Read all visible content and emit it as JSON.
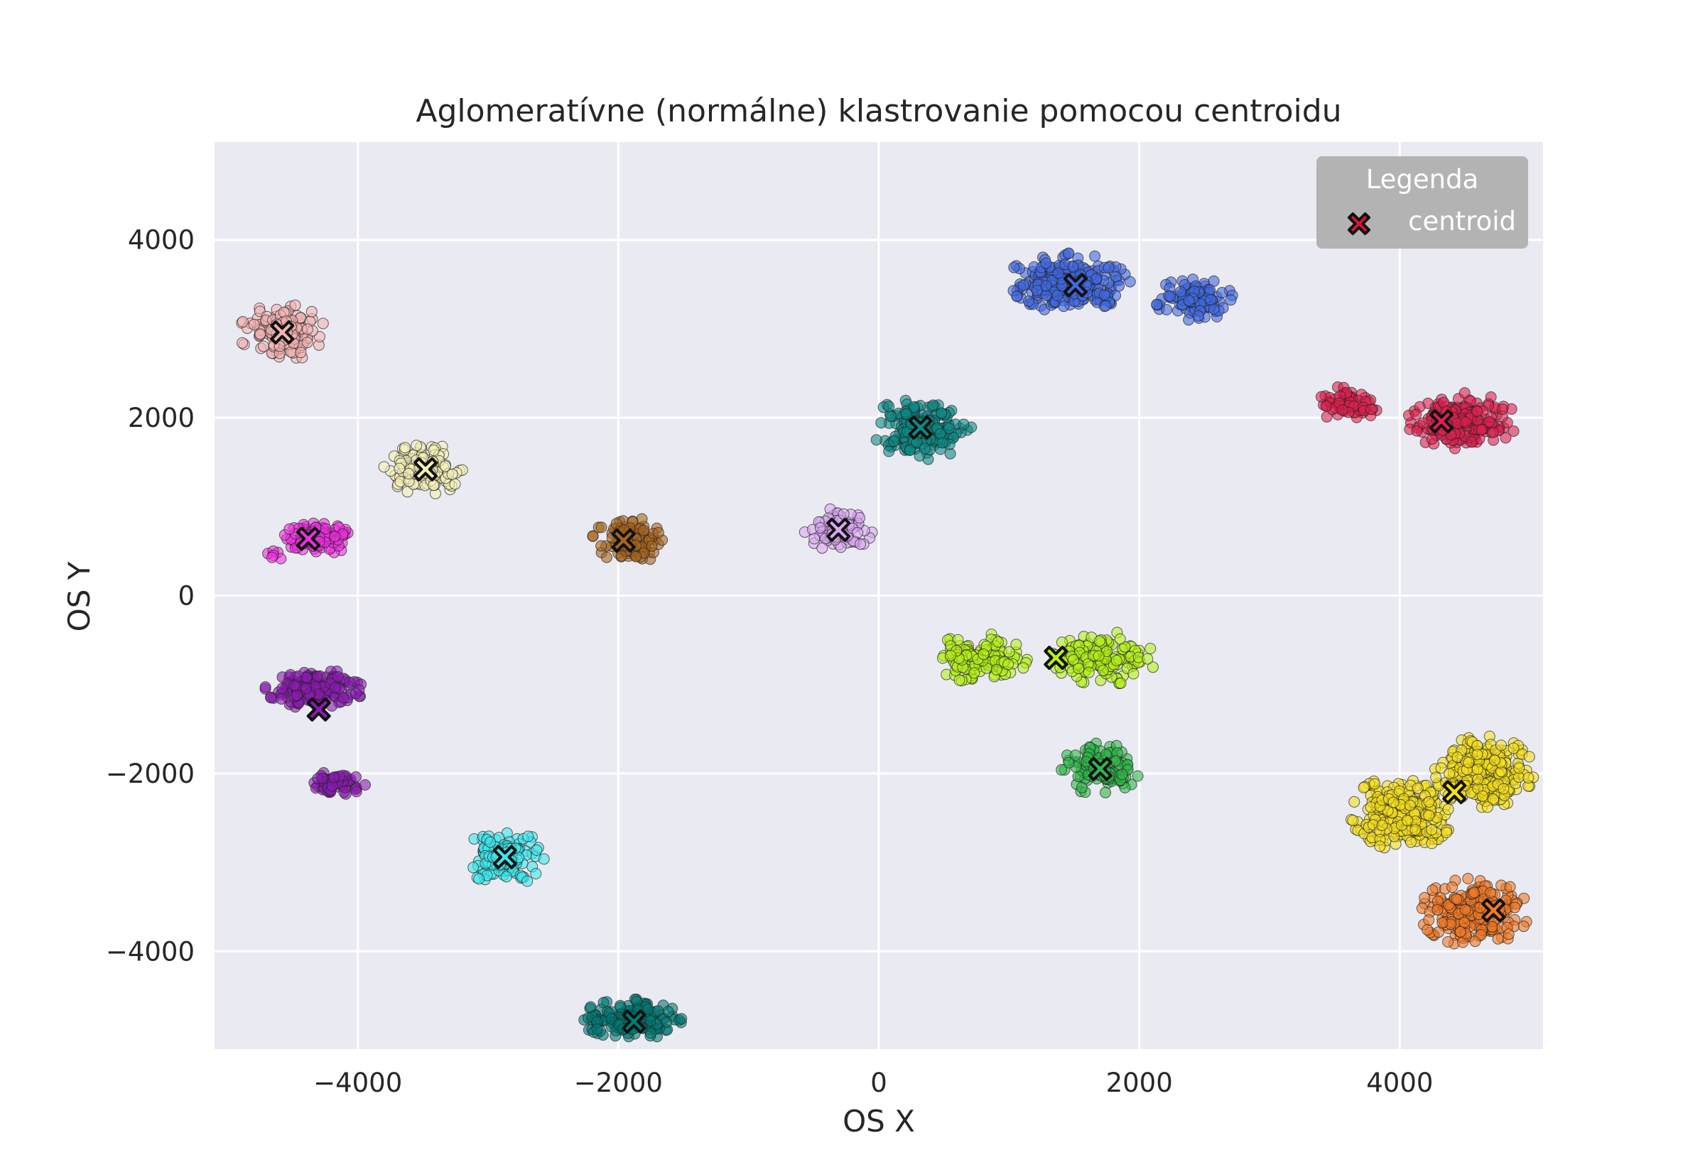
{
  "chart_data": {
    "type": "scatter",
    "title": "Aglomeratívne (normálne) klastrovanie pomocou centroidu",
    "xlabel": "OS X",
    "ylabel": "OS Y",
    "xlim": [
      -5100,
      5100
    ],
    "ylim": [
      -5100,
      5100
    ],
    "xticks": [
      -4000,
      -2000,
      0,
      2000,
      4000
    ],
    "yticks": [
      -4000,
      -2000,
      0,
      2000,
      4000
    ],
    "xtick_labels": [
      "−4000",
      "−2000",
      "0",
      "2000",
      "4000"
    ],
    "ytick_labels": [
      "−4000",
      "−2000",
      "0",
      "2000",
      "4000"
    ],
    "grid": true,
    "background": "#eaeaf2",
    "legend": {
      "title": "Legenda",
      "placement": "top-right",
      "entries": [
        {
          "label": "centroid",
          "marker": "X",
          "color": "#dc143c"
        }
      ]
    },
    "clusters": [
      {
        "color": "#f4b3b3",
        "centroid": [
          -4580,
          2960
        ],
        "blobs": [
          {
            "cx": -4580,
            "cy": 2960,
            "rx": 330,
            "ry": 320,
            "n": 130
          }
        ]
      },
      {
        "color": "#f5f0b8",
        "centroid": [
          -3480,
          1420
        ],
        "blobs": [
          {
            "cx": -3480,
            "cy": 1420,
            "rx": 320,
            "ry": 280,
            "n": 120
          }
        ]
      },
      {
        "color": "#ee2fe0",
        "centroid": [
          -4380,
          640
        ],
        "blobs": [
          {
            "cx": -4330,
            "cy": 640,
            "rx": 280,
            "ry": 190,
            "n": 110
          },
          {
            "cx": -4650,
            "cy": 450,
            "rx": 60,
            "ry": 180,
            "n": 6
          }
        ]
      },
      {
        "color": "#8b1ab0",
        "centroid": [
          -4300,
          -1280
        ],
        "blobs": [
          {
            "cx": -4330,
            "cy": -1040,
            "rx": 380,
            "ry": 230,
            "n": 150
          },
          {
            "cx": -4150,
            "cy": -2120,
            "rx": 220,
            "ry": 170,
            "n": 60
          }
        ]
      },
      {
        "color": "#3ee8ec",
        "centroid": [
          -2870,
          -2940
        ],
        "blobs": [
          {
            "cx": -2870,
            "cy": -2940,
            "rx": 300,
            "ry": 330,
            "n": 130
          }
        ]
      },
      {
        "color": "#007a73",
        "centroid": [
          -1880,
          -4790
        ],
        "blobs": [
          {
            "cx": -1880,
            "cy": -4760,
            "rx": 420,
            "ry": 220,
            "n": 160
          }
        ]
      },
      {
        "color": "#a7661e",
        "centroid": [
          -1960,
          620
        ],
        "blobs": [
          {
            "cx": -1920,
            "cy": 620,
            "rx": 280,
            "ry": 260,
            "n": 120
          }
        ]
      },
      {
        "color": "#d8a8f0",
        "centroid": [
          -310,
          740
        ],
        "blobs": [
          {
            "cx": -310,
            "cy": 740,
            "rx": 260,
            "ry": 240,
            "n": 90
          }
        ]
      },
      {
        "color": "#0b8a85",
        "centroid": [
          320,
          1890
        ],
        "blobs": [
          {
            "cx": 330,
            "cy": 1890,
            "rx": 380,
            "ry": 360,
            "n": 200
          }
        ]
      },
      {
        "color": "#4169e1",
        "centroid": [
          1510,
          3490
        ],
        "blobs": [
          {
            "cx": 1450,
            "cy": 3520,
            "rx": 480,
            "ry": 330,
            "n": 260
          },
          {
            "cx": 2420,
            "cy": 3330,
            "rx": 300,
            "ry": 240,
            "n": 100
          }
        ]
      },
      {
        "color": "#e0204f",
        "centroid": [
          4320,
          1960
        ],
        "blobs": [
          {
            "cx": 3600,
            "cy": 2160,
            "rx": 240,
            "ry": 200,
            "n": 70
          },
          {
            "cx": 4480,
            "cy": 1960,
            "rx": 420,
            "ry": 320,
            "n": 200
          }
        ]
      },
      {
        "color": "#b5f21a",
        "centroid": [
          1360,
          -700
        ],
        "blobs": [
          {
            "cx": 780,
            "cy": -700,
            "rx": 360,
            "ry": 280,
            "n": 130
          },
          {
            "cx": 1730,
            "cy": -700,
            "rx": 400,
            "ry": 300,
            "n": 150
          }
        ]
      },
      {
        "color": "#2eb84a",
        "centroid": [
          1700,
          -1950
        ],
        "blobs": [
          {
            "cx": 1700,
            "cy": -1950,
            "rx": 300,
            "ry": 290,
            "n": 130
          }
        ]
      },
      {
        "color": "#f5e01e",
        "centroid": [
          4420,
          -2210
        ],
        "blobs": [
          {
            "cx": 4020,
            "cy": -2440,
            "rx": 400,
            "ry": 420,
            "n": 260
          },
          {
            "cx": 4650,
            "cy": -1980,
            "rx": 380,
            "ry": 400,
            "n": 280
          }
        ]
      },
      {
        "color": "#f27a26",
        "centroid": [
          4720,
          -3540
        ],
        "blobs": [
          {
            "cx": 4570,
            "cy": -3560,
            "rx": 420,
            "ry": 380,
            "n": 240
          }
        ]
      }
    ]
  }
}
